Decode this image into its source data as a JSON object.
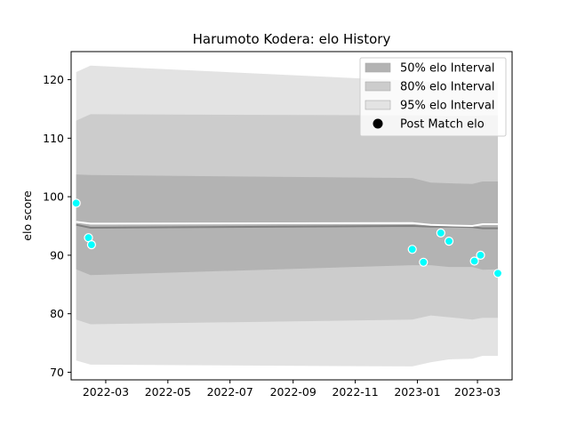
{
  "chart_data": {
    "type": "area",
    "title": "Harumoto Kodera: elo History",
    "xlabel": "",
    "ylabel": "elo score",
    "x_range": [
      "2022-01-26",
      "2023-04-04"
    ],
    "ylim": [
      68.7,
      124.8
    ],
    "x_ticks": [
      "2022-03",
      "2022-05",
      "2022-07",
      "2022-09",
      "2022-11",
      "2023-01",
      "2023-03"
    ],
    "y_ticks": [
      70,
      80,
      90,
      100,
      110,
      120
    ],
    "grid": false,
    "legend_position": "top-right",
    "colors": {
      "band_50": "#b3b3b3",
      "band_80": "#cccccc",
      "band_95": "#e3e3e3",
      "mean_line": "#808080",
      "median_line": "#ffffff",
      "points_fill": "#00ffff",
      "points_edge": "#ffffff"
    },
    "bands": {
      "dates": [
        "2022-01-31",
        "2022-02-14",
        "2022-12-27",
        "2023-01-14",
        "2023-02-01",
        "2023-02-24",
        "2023-03-06",
        "2023-03-21"
      ],
      "p95_low": [
        72.0,
        71.3,
        71.0,
        71.7,
        72.2,
        72.3,
        72.8,
        72.8
      ],
      "p80_low": [
        79.0,
        78.2,
        79.0,
        79.7,
        79.4,
        79.0,
        79.3,
        79.3
      ],
      "p50_low": [
        87.6,
        86.6,
        88.3,
        88.3,
        88.0,
        88.0,
        87.5,
        87.6
      ],
      "mean": [
        95.2,
        94.7,
        95.0,
        94.9,
        94.9,
        94.8,
        94.6,
        94.6
      ],
      "median": [
        95.7,
        95.4,
        95.5,
        95.2,
        95.1,
        95.0,
        95.3,
        95.3
      ],
      "p50_high": [
        103.8,
        103.7,
        103.2,
        102.4,
        102.3,
        102.2,
        102.6,
        102.6
      ],
      "p80_high": [
        113.0,
        114.1,
        113.9,
        113.9,
        113.8,
        113.8,
        113.9,
        113.9
      ],
      "p95_high": [
        121.3,
        122.4,
        119.8,
        119.6,
        119.5,
        119.4,
        119.4,
        119.4
      ]
    },
    "series": [
      {
        "name": "Post Match elo",
        "type": "scatter",
        "x": [
          "2022-01-31",
          "2022-02-12",
          "2022-02-15",
          "2022-12-27",
          "2023-01-07",
          "2023-01-24",
          "2023-02-01",
          "2023-02-26",
          "2023-03-04",
          "2023-03-21"
        ],
        "y": [
          98.9,
          93.0,
          91.8,
          91.0,
          88.8,
          93.8,
          92.4,
          89.0,
          90.0,
          86.9
        ]
      }
    ],
    "legend": [
      {
        "label": "50% elo Interval",
        "kind": "band_50"
      },
      {
        "label": "80% elo Interval",
        "kind": "band_80"
      },
      {
        "label": "95% elo Interval",
        "kind": "band_95"
      },
      {
        "label": "Post Match elo",
        "kind": "marker"
      }
    ]
  }
}
